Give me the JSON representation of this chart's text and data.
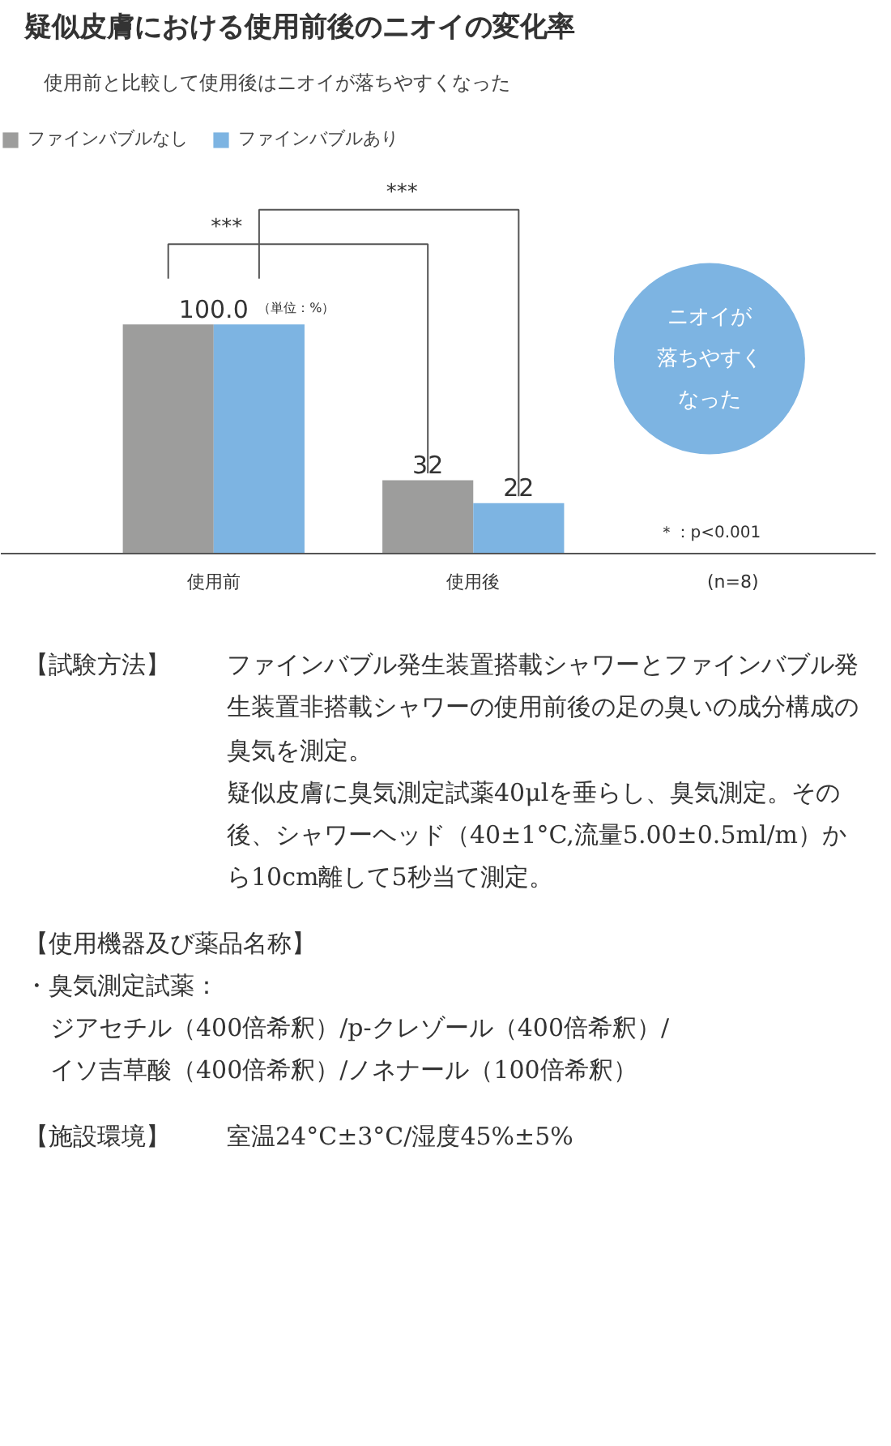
{
  "chart_data": [
    {
      "type": "bar",
      "title": "疑似皮膚における使用前後のニオイの変化率",
      "subtitle": "使用前と比較して使用後はニオイが落ちやすくなった",
      "categories": [
        "使用前",
        "使用後"
      ],
      "series": [
        {
          "name": "ファインバブルなし",
          "color": "#9d9d9c",
          "values": [
            100.0,
            32
          ],
          "value_labels": [
            "100.0",
            "32"
          ]
        },
        {
          "name": "ファインバブルあり",
          "color": "#7db4e2",
          "values": [
            100.0,
            22
          ],
          "value_labels": [
            null,
            "22"
          ]
        }
      ],
      "legend": "top left",
      "annotations": [
        "（単位：%）",
        "***",
        "***",
        "ニオイが",
        "落ちやすく",
        "なった",
        "＊：p<0.001",
        "(n=8)"
      ]
    },
    {
      "type": "other",
      "annotations": [
        "【試験方法】",
        "ファインバブル発生装置搭載シャワーとファインバブル発生装置非搭載シャワーの使用前後の足の臭いの成分構成の臭気を測定。",
        "疑似皮膚に臭気測定試薬40μlを垂らし、臭気測定。その後、シャワーヘッド（40±1°C,流量5.00±0.5ml/m）から10cm離して5秒当て測定。",
        "【使用機器及び薬品名称】",
        "・臭気測定試薬：",
        "ジアセチル（400倍希釈）/p-クレゾール（400倍希釈）/",
        "イソ吉草酸（400倍希釈）/ノネナール（100倍希釈）",
        "【施設環境】",
        "室温24°C±3°C/湿度45%±5%"
      ]
    }
  ]
}
